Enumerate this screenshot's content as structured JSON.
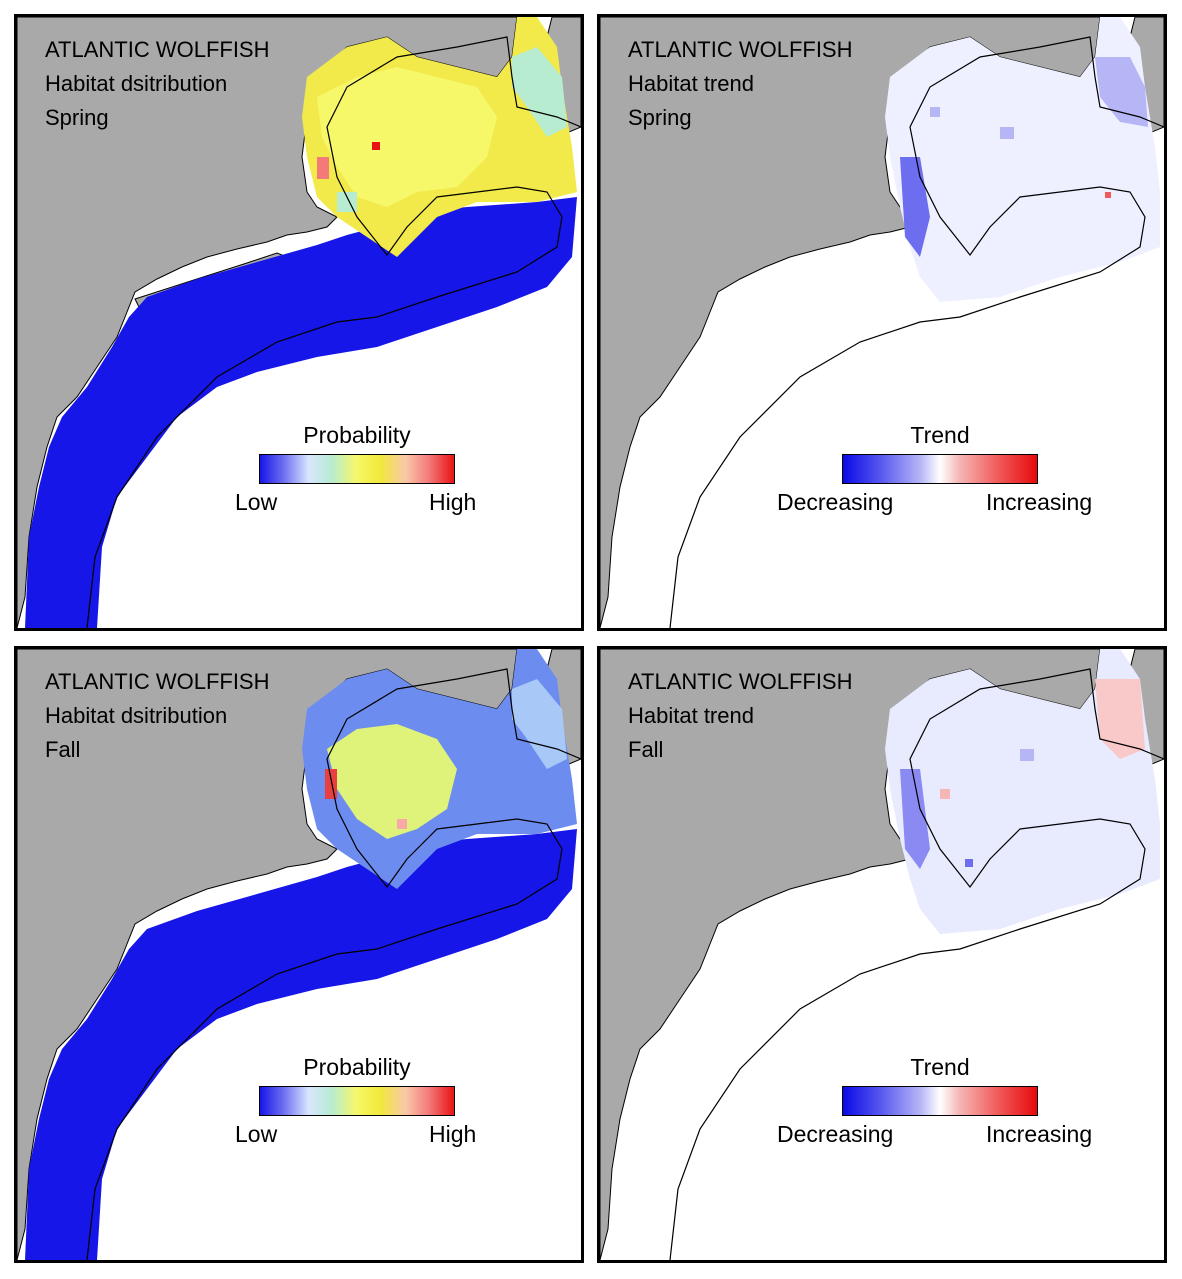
{
  "panels": [
    {
      "id": "spring-distribution",
      "species": "ATLANTIC WOLFFISH",
      "metric": "Habitat dsitribution",
      "season": "Spring",
      "legend": {
        "title": "Probability",
        "low": "Low",
        "high": "High",
        "type": "probability"
      }
    },
    {
      "id": "spring-trend",
      "species": "ATLANTIC WOLFFISH",
      "metric": "Habitat trend",
      "season": "Spring",
      "legend": {
        "title": "Trend",
        "low": "Decreasing",
        "high": "Increasing",
        "type": "trend"
      }
    },
    {
      "id": "fall-distribution",
      "species": "ATLANTIC WOLFFISH",
      "metric": "Habitat dsitribution",
      "season": "Fall",
      "legend": {
        "title": "Probability",
        "low": "Low",
        "high": "High",
        "type": "probability"
      }
    },
    {
      "id": "fall-trend",
      "species": "ATLANTIC WOLFFISH",
      "metric": "Habitat trend",
      "season": "Fall",
      "legend": {
        "title": "Trend",
        "low": "Decreasing",
        "high": "Increasing",
        "type": "trend"
      }
    }
  ],
  "colors": {
    "land": "#a9a9a9",
    "ocean": "#ffffff",
    "outline": "#000000",
    "low_probability": "#1616e8",
    "mid_probability": "#f7f76a",
    "high_probability": "#e81414",
    "decreasing": "#0a0ae6",
    "increasing": "#e60a0a"
  }
}
